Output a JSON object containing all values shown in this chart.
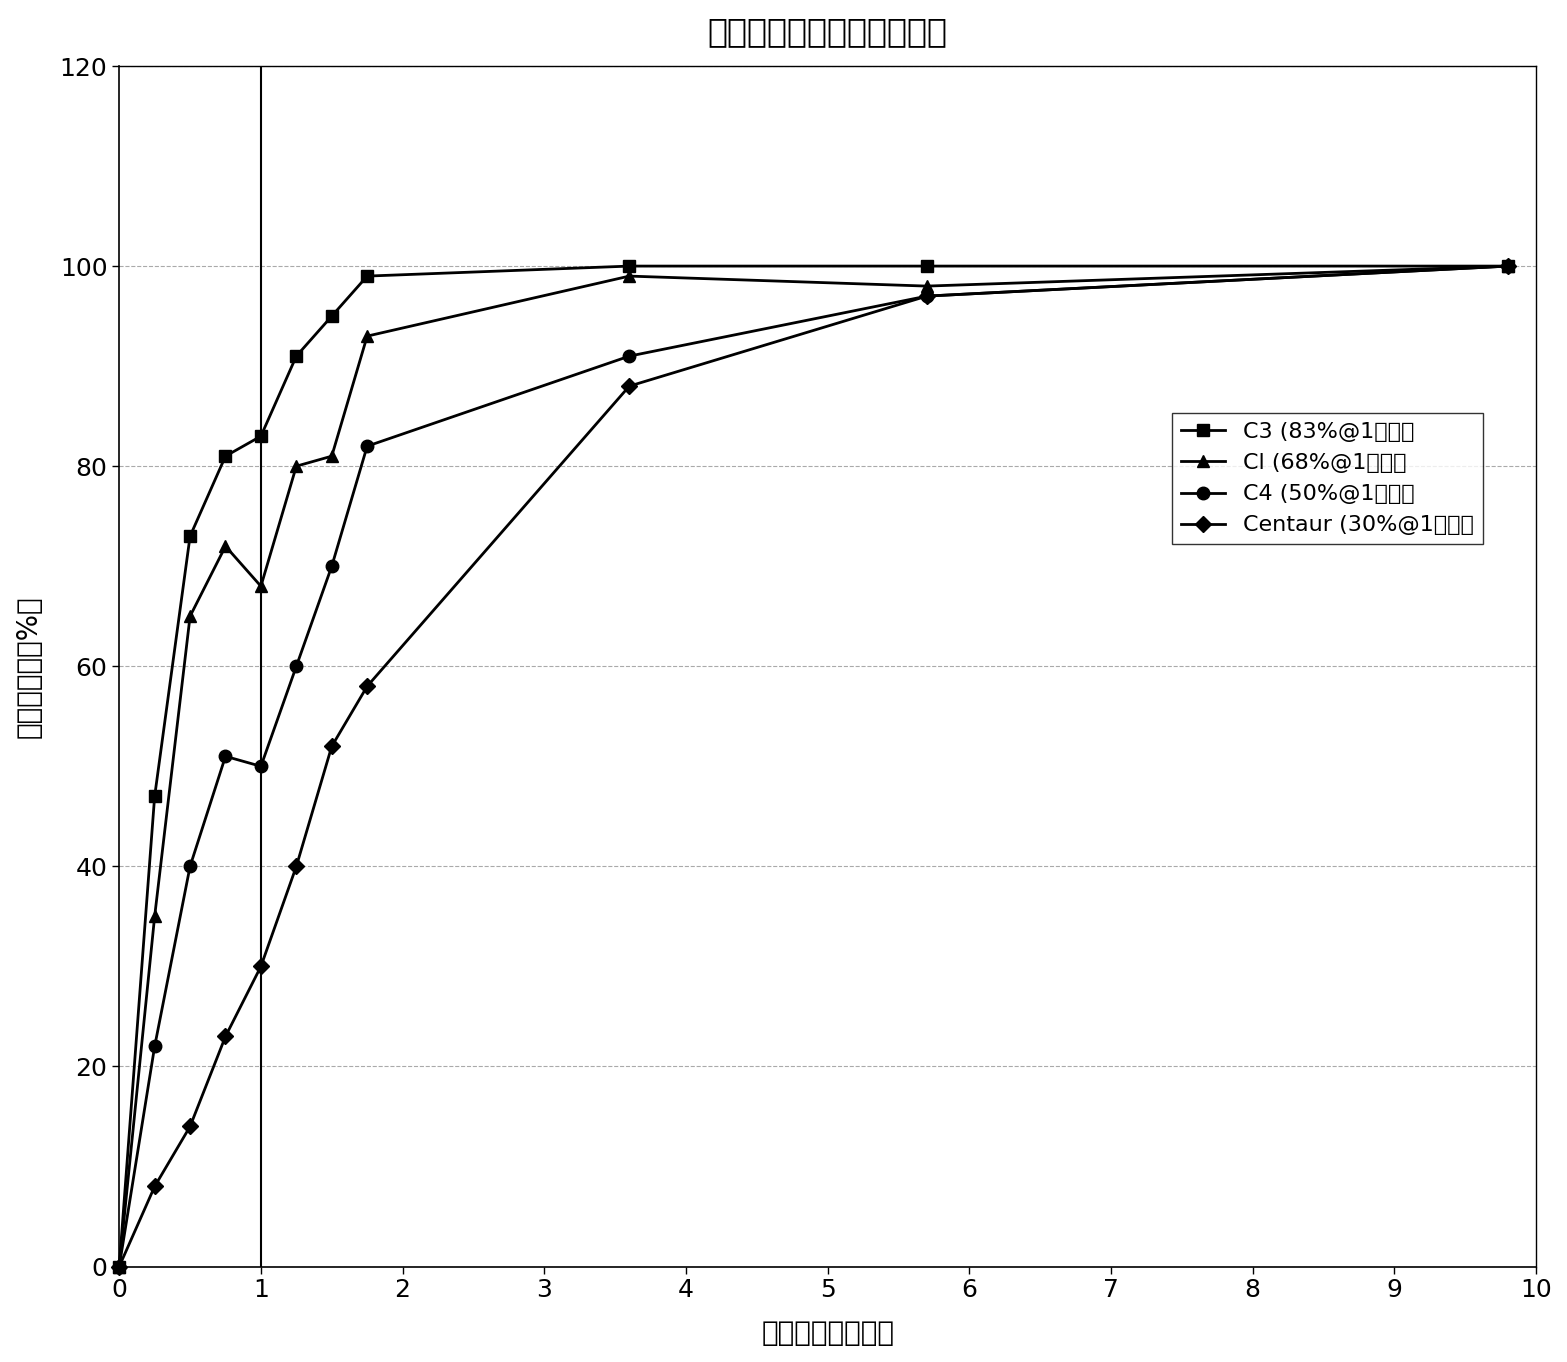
{
  "title": "催化碳产品的氯胺减少性能",
  "xlabel": "经过时间（分钟）",
  "ylabel": "氯胺的减少（%）",
  "xlim": [
    0,
    10
  ],
  "ylim": [
    0,
    120
  ],
  "xticks": [
    0,
    1,
    2,
    3,
    4,
    5,
    6,
    7,
    8,
    9,
    10
  ],
  "yticks": [
    0,
    20,
    40,
    60,
    80,
    100,
    120
  ],
  "series": [
    {
      "label": "C3 (83%@1分钟）",
      "x": [
        0,
        0.25,
        0.5,
        0.75,
        1.0,
        1.25,
        1.5,
        1.75,
        3.6,
        5.7,
        9.8
      ],
      "y": [
        0,
        47,
        73,
        81,
        83,
        91,
        95,
        99,
        100,
        100,
        100
      ],
      "marker": "s",
      "color": "#000000",
      "linewidth": 2.0,
      "markersize": 9
    },
    {
      "label": "Cl (68%@1分钟）",
      "x": [
        0,
        0.25,
        0.5,
        0.75,
        1.0,
        1.25,
        1.5,
        1.75,
        3.6,
        5.7,
        9.8
      ],
      "y": [
        0,
        35,
        65,
        72,
        68,
        80,
        81,
        93,
        99,
        98,
        100
      ],
      "marker": "^",
      "color": "#000000",
      "linewidth": 2.0,
      "markersize": 9
    },
    {
      "label": "C4 (50%@1分钟）",
      "x": [
        0,
        0.25,
        0.5,
        0.75,
        1.0,
        1.25,
        1.5,
        1.75,
        3.6,
        5.7,
        9.8
      ],
      "y": [
        0,
        22,
        40,
        51,
        50,
        60,
        70,
        82,
        91,
        97,
        100
      ],
      "marker": "o",
      "color": "#000000",
      "linewidth": 2.0,
      "markersize": 9
    },
    {
      "label": "Centaur (30%@1分钟）",
      "x": [
        0,
        0.25,
        0.5,
        0.75,
        1.0,
        1.25,
        1.5,
        1.75,
        3.6,
        5.7,
        9.8
      ],
      "y": [
        0,
        8,
        14,
        23,
        30,
        40,
        52,
        58,
        88,
        97,
        100
      ],
      "marker": "D",
      "color": "#000000",
      "linewidth": 2.0,
      "markersize": 8
    }
  ],
  "vline_x": 1.0,
  "background_color": "#ffffff",
  "title_fontsize": 24,
  "label_fontsize": 20,
  "tick_fontsize": 18,
  "legend_fontsize": 16
}
